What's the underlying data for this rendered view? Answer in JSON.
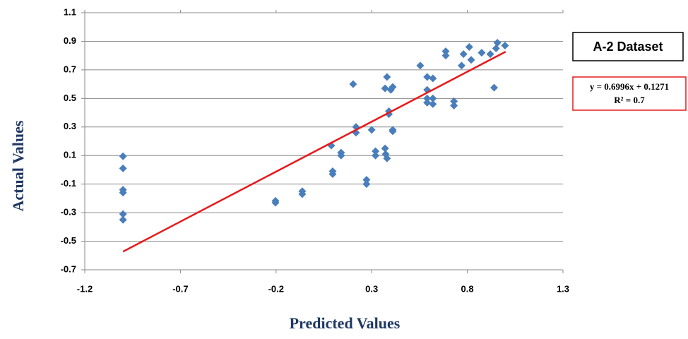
{
  "chart_data": {
    "type": "scatter",
    "x_label": "Predicted Values",
    "y_label": "Actual Values",
    "annotation": "A-2 Dataset",
    "color": "#4a7ebb",
    "grid": true,
    "xlim": [
      -1.2,
      1.3
    ],
    "xticks": [
      -1.2,
      -0.7,
      -0.2,
      0.3,
      0.8,
      1.3
    ],
    "ylim": [
      -0.7,
      1.1
    ],
    "yticks": [
      1.1,
      0.9,
      0.7,
      0.5,
      0.3,
      0.1,
      -0.1,
      -0.3,
      -0.5,
      -0.7
    ],
    "x": [
      -1.0,
      -1.0,
      -1.0,
      -1.0,
      -1.0,
      -1.0,
      -0.203,
      -0.203,
      -0.063,
      -0.063,
      0.089,
      0.096,
      0.096,
      0.14,
      0.14,
      0.203,
      0.218,
      0.218,
      0.3,
      0.273,
      0.273,
      0.32,
      0.32,
      0.37,
      0.373,
      0.38,
      0.39,
      0.39,
      0.41,
      0.41,
      0.37,
      0.4,
      0.41,
      0.38,
      0.554,
      0.59,
      0.59,
      0.59,
      0.59,
      0.62,
      0.62,
      0.62,
      0.73,
      0.73,
      0.687,
      0.687,
      0.77,
      0.78,
      0.81,
      0.82,
      0.875,
      0.92,
      0.957,
      0.95,
      0.997,
      0.94
    ],
    "values": [
      0.095,
      0.01,
      -0.14,
      -0.16,
      -0.31,
      -0.35,
      -0.217,
      -0.23,
      -0.15,
      -0.17,
      0.17,
      -0.01,
      -0.03,
      0.12,
      0.1,
      0.6,
      0.3,
      0.26,
      0.28,
      -0.07,
      -0.1,
      0.13,
      0.1,
      0.15,
      0.11,
      0.08,
      0.41,
      0.39,
      0.28,
      0.27,
      0.57,
      0.56,
      0.58,
      0.65,
      0.73,
      0.65,
      0.56,
      0.5,
      0.47,
      0.64,
      0.5,
      0.46,
      0.48,
      0.45,
      0.83,
      0.8,
      0.73,
      0.81,
      0.86,
      0.77,
      0.82,
      0.81,
      0.89,
      0.85,
      0.87,
      0.575
    ],
    "trendline": {
      "label": "y = 0.6996x + 0.1271",
      "r2_label": "R² = 0.7",
      "slope": 0.6996,
      "intercept": 0.1271,
      "x": [
        -1,
        1
      ],
      "color": "#e8191b"
    }
  }
}
